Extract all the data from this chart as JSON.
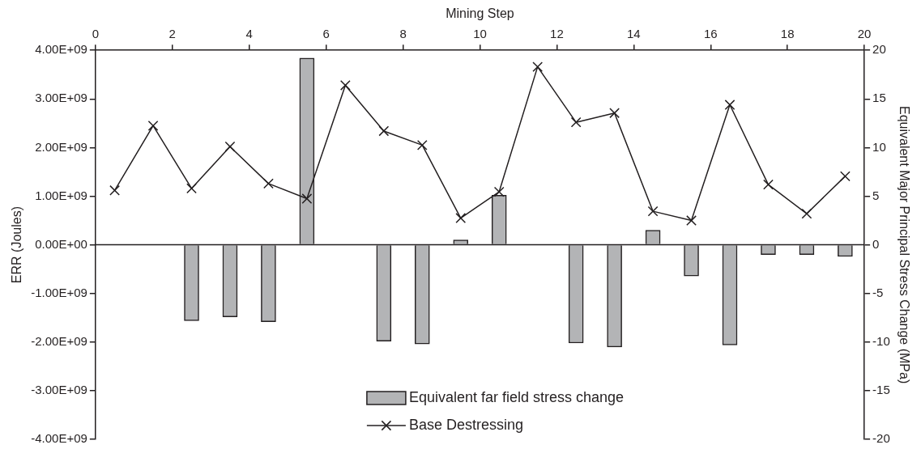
{
  "chart_data": {
    "type": "bar",
    "xlabel": "Mining Step",
    "ylabel": "ERR (Joules)",
    "y2label": "Equivalent Major Principal Stress Change (MPa)",
    "x": [
      0.5,
      1.5,
      2.5,
      3.5,
      4.5,
      5.5,
      6.5,
      7.5,
      8.5,
      9.5,
      10.5,
      11.5,
      12.5,
      13.5,
      14.5,
      15.5,
      16.5,
      17.5,
      18.5,
      19.5
    ],
    "series": [
      {
        "name": "Equivalent far field stress change",
        "axis": "y2",
        "color": "#b3b4b6",
        "values": [
          null,
          null,
          -7.8,
          -7.4,
          -7.9,
          19.2,
          null,
          -9.9,
          -10.2,
          0.5,
          5.1,
          null,
          -10.1,
          -10.5,
          1.5,
          -3.2,
          -10.3,
          -1.0,
          -1.0,
          -1.2
        ]
      },
      {
        "name": "Base Destressing",
        "type": "line",
        "axis": "y",
        "color": "#231f20",
        "marker": "cross",
        "values": [
          1120000000.0,
          2450000000.0,
          1160000000.0,
          2020000000.0,
          1260000000.0,
          950000000.0,
          3280000000.0,
          2340000000.0,
          2050000000.0,
          550000000.0,
          1090000000.0,
          3660000000.0,
          2520000000.0,
          2710000000.0,
          690000000.0,
          500000000.0,
          2880000000.0,
          1240000000.0,
          640000000.0,
          1410000000.0
        ]
      }
    ],
    "xlim": [
      0,
      20
    ],
    "xticks": [
      0,
      2,
      4,
      6,
      8,
      10,
      12,
      14,
      16,
      18,
      20
    ],
    "ylim": [
      -4000000000.0,
      4000000000.0
    ],
    "yticks": [
      {
        "value": -4000000000.0,
        "label": "-4.00E+09"
      },
      {
        "value": -3000000000.0,
        "label": "-3.00E+09"
      },
      {
        "value": -2000000000.0,
        "label": "-2.00E+09"
      },
      {
        "value": -1000000000.0,
        "label": "-1.00E+09"
      },
      {
        "value": 0,
        "label": "0.00E+00"
      },
      {
        "value": 1000000000.0,
        "label": "1.00E+09"
      },
      {
        "value": 2000000000.0,
        "label": "2.00E+09"
      },
      {
        "value": 3000000000.0,
        "label": "3.00E+09"
      },
      {
        "value": 4000000000.0,
        "label": "4.00E+09"
      }
    ],
    "y2lim": [
      -20,
      20
    ],
    "y2ticks": [
      -20,
      -15,
      -10,
      -5,
      0,
      5,
      10,
      15,
      20
    ],
    "ref_lines": [
      {
        "axis": "y",
        "value": 0,
        "color": "#231f20"
      }
    ],
    "grid": false,
    "legend": "bottom"
  }
}
